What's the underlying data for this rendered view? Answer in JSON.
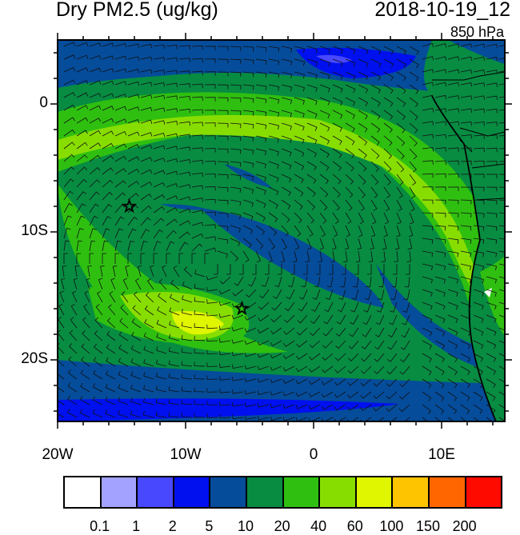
{
  "title": "Dry PM2.5 (ug/kg)",
  "date": "2018-10-19_12",
  "level": "850 hPa",
  "map": {
    "lon_range": [
      -20,
      15
    ],
    "lat_range": [
      -25,
      5
    ],
    "lat_labels": [
      "0",
      "10S",
      "20S"
    ],
    "lon_labels": [
      "20W",
      "10W",
      "0",
      "10E"
    ],
    "markers": [
      {
        "name": "star",
        "lon": -14.4,
        "lat": -8
      },
      {
        "name": "star",
        "lon": -5.6,
        "lat": -16
      }
    ]
  },
  "colorbar": {
    "colors": [
      "#ffffff",
      "#a3a3ff",
      "#4848ff",
      "#0010ee",
      "#054c9a",
      "#078c42",
      "#2fbf10",
      "#88dd00",
      "#e0f500",
      "#ffc400",
      "#ff6600",
      "#ff0a00"
    ],
    "labels": [
      "0.1",
      "1",
      "2",
      "5",
      "10",
      "20",
      "40",
      "60",
      "100",
      "150",
      "200"
    ]
  }
}
